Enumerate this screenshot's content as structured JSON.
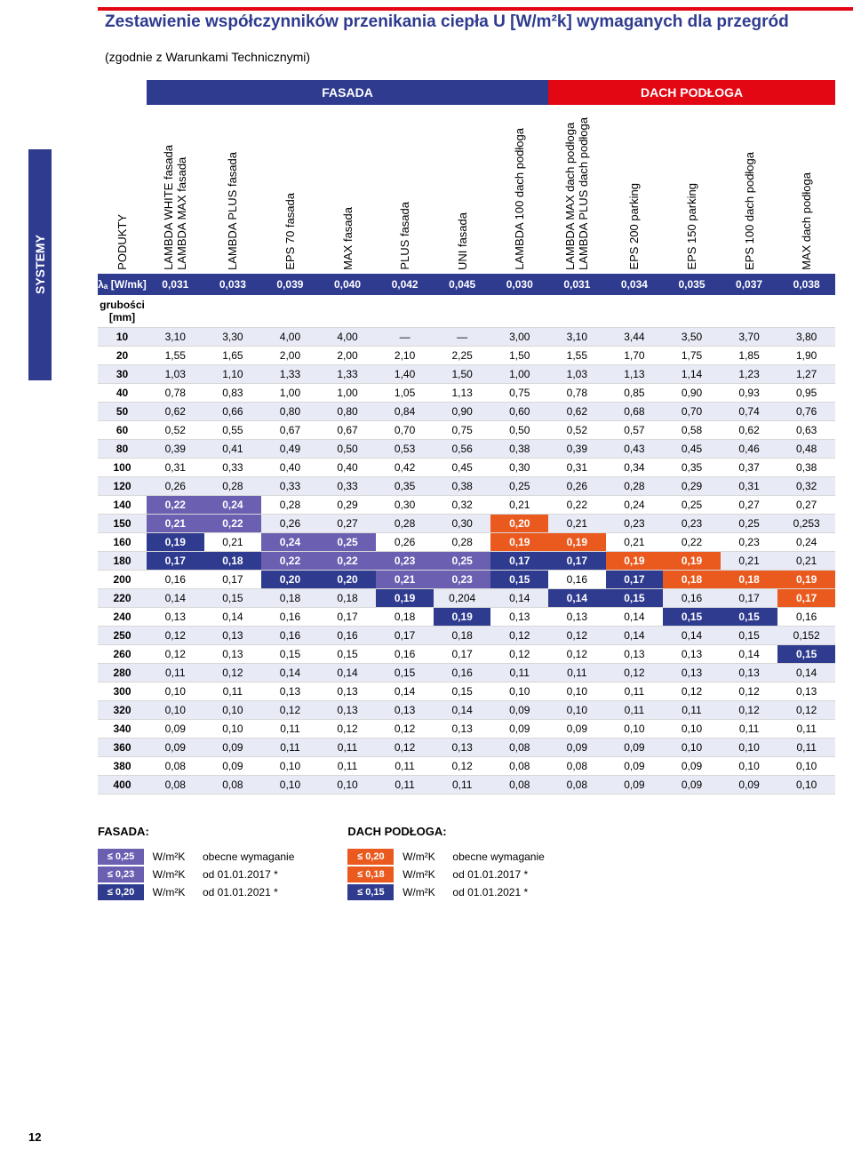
{
  "page_number": "12",
  "rail": {
    "label": "SYSTEMY",
    "bg": "#2e3b8f",
    "fg": "#ffffff"
  },
  "header": {
    "border_color": "#e30613",
    "title_color": "#2e3b8f"
  },
  "title": "Zestawienie współczynników przenikania ciepła U [W/m²k] wymaganych dla przegród",
  "subtitle": "(zgodnie z Warunkami Technicznymi)",
  "bands": [
    {
      "label": "FASADA",
      "bg": "#2e3b8f",
      "span": 7
    },
    {
      "label": "DACH PODŁOGA",
      "bg": "#e30613",
      "span": 5
    }
  ],
  "first_col_header": "PODUKTY",
  "columns": [
    "LAMBDA WHITE fasada\nLAMBDA MAX fasada",
    "LAMBDA PLUS fasada",
    "EPS 70 fasada",
    "MAX fasada",
    "PLUS fasada",
    "UNI fasada",
    "LAMBDA 100 dach podłoga",
    "LAMBDA MAX dach podłoga\nLAMBDA PLUS dach podłoga",
    "EPS 200 parking",
    "EPS 150 parking",
    "EPS 100 dach podłoga",
    "MAX dach podłoga"
  ],
  "lambda_row": {
    "label": "λₐ [W/mk]",
    "values": [
      "0,031",
      "0,033",
      "0,039",
      "0,040",
      "0,042",
      "0,045",
      "0,030",
      "0,031",
      "0,034",
      "0,035",
      "0,037",
      "0,038"
    ],
    "bg": "#2e3b8f"
  },
  "grubosci_label": "grubości\n[mm]",
  "row_colors": {
    "even": "#e8eaf5",
    "odd": "#ffffff"
  },
  "highlight_colors": {
    "purple": "#6b5fb2",
    "orange": "#ea5a1f",
    "navy": "#2e3b8f"
  },
  "rows": [
    {
      "t": "10",
      "v": [
        "3,10",
        "3,30",
        "4,00",
        "4,00",
        "—",
        "—",
        "3,00",
        "3,10",
        "3,44",
        "3,50",
        "3,70",
        "3,80"
      ],
      "hl": []
    },
    {
      "t": "20",
      "v": [
        "1,55",
        "1,65",
        "2,00",
        "2,00",
        "2,10",
        "2,25",
        "1,50",
        "1,55",
        "1,70",
        "1,75",
        "1,85",
        "1,90"
      ],
      "hl": []
    },
    {
      "t": "30",
      "v": [
        "1,03",
        "1,10",
        "1,33",
        "1,33",
        "1,40",
        "1,50",
        "1,00",
        "1,03",
        "1,13",
        "1,14",
        "1,23",
        "1,27"
      ],
      "hl": []
    },
    {
      "t": "40",
      "v": [
        "0,78",
        "0,83",
        "1,00",
        "1,00",
        "1,05",
        "1,13",
        "0,75",
        "0,78",
        "0,85",
        "0,90",
        "0,93",
        "0,95"
      ],
      "hl": []
    },
    {
      "t": "50",
      "v": [
        "0,62",
        "0,66",
        "0,80",
        "0,80",
        "0,84",
        "0,90",
        "0,60",
        "0,62",
        "0,68",
        "0,70",
        "0,74",
        "0,76"
      ],
      "hl": []
    },
    {
      "t": "60",
      "v": [
        "0,52",
        "0,55",
        "0,67",
        "0,67",
        "0,70",
        "0,75",
        "0,50",
        "0,52",
        "0,57",
        "0,58",
        "0,62",
        "0,63"
      ],
      "hl": []
    },
    {
      "t": "80",
      "v": [
        "0,39",
        "0,41",
        "0,49",
        "0,50",
        "0,53",
        "0,56",
        "0,38",
        "0,39",
        "0,43",
        "0,45",
        "0,46",
        "0,48"
      ],
      "hl": []
    },
    {
      "t": "100",
      "v": [
        "0,31",
        "0,33",
        "0,40",
        "0,40",
        "0,42",
        "0,45",
        "0,30",
        "0,31",
        "0,34",
        "0,35",
        "0,37",
        "0,38"
      ],
      "hl": []
    },
    {
      "t": "120",
      "v": [
        "0,26",
        "0,28",
        "0,33",
        "0,33",
        "0,35",
        "0,38",
        "0,25",
        "0,26",
        "0,28",
        "0,29",
        "0,31",
        "0,32"
      ],
      "hl": []
    },
    {
      "t": "140",
      "v": [
        "0,22",
        "0,24",
        "0,28",
        "0,29",
        "0,30",
        "0,32",
        "0,21",
        "0,22",
        "0,24",
        "0,25",
        "0,27",
        "0,27"
      ],
      "hl": [
        [
          0,
          "purple"
        ],
        [
          1,
          "purple"
        ]
      ]
    },
    {
      "t": "150",
      "v": [
        "0,21",
        "0,22",
        "0,26",
        "0,27",
        "0,28",
        "0,30",
        "0,20",
        "0,21",
        "0,23",
        "0,23",
        "0,25",
        "0,253"
      ],
      "hl": [
        [
          0,
          "purple"
        ],
        [
          1,
          "purple"
        ],
        [
          6,
          "orange"
        ]
      ]
    },
    {
      "t": "160",
      "v": [
        "0,19",
        "0,21",
        "0,24",
        "0,25",
        "0,26",
        "0,28",
        "0,19",
        "0,19",
        "0,21",
        "0,22",
        "0,23",
        "0,24"
      ],
      "hl": [
        [
          0,
          "navy"
        ],
        [
          2,
          "purple"
        ],
        [
          3,
          "purple"
        ],
        [
          6,
          "orange"
        ],
        [
          7,
          "orange"
        ]
      ]
    },
    {
      "t": "180",
      "v": [
        "0,17",
        "0,18",
        "0,22",
        "0,22",
        "0,23",
        "0,25",
        "0,17",
        "0,17",
        "0,19",
        "0,19",
        "0,21",
        "0,21"
      ],
      "hl": [
        [
          0,
          "navy"
        ],
        [
          1,
          "navy"
        ],
        [
          2,
          "purple"
        ],
        [
          3,
          "purple"
        ],
        [
          4,
          "purple"
        ],
        [
          5,
          "purple"
        ],
        [
          6,
          "navy"
        ],
        [
          7,
          "navy"
        ],
        [
          8,
          "orange"
        ],
        [
          9,
          "orange"
        ]
      ]
    },
    {
      "t": "200",
      "v": [
        "0,16",
        "0,17",
        "0,20",
        "0,20",
        "0,21",
        "0,23",
        "0,15",
        "0,16",
        "0,17",
        "0,18",
        "0,18",
        "0,19"
      ],
      "hl": [
        [
          2,
          "navy"
        ],
        [
          3,
          "navy"
        ],
        [
          4,
          "purple"
        ],
        [
          5,
          "purple"
        ],
        [
          6,
          "navy"
        ],
        [
          8,
          "navy"
        ],
        [
          9,
          "orange"
        ],
        [
          10,
          "orange"
        ],
        [
          11,
          "orange"
        ]
      ]
    },
    {
      "t": "220",
      "v": [
        "0,14",
        "0,15",
        "0,18",
        "0,18",
        "0,19",
        "0,204",
        "0,14",
        "0,14",
        "0,15",
        "0,16",
        "0,17",
        "0,17"
      ],
      "hl": [
        [
          4,
          "navy"
        ],
        [
          7,
          "navy"
        ],
        [
          8,
          "navy"
        ],
        [
          11,
          "orange"
        ]
      ]
    },
    {
      "t": "240",
      "v": [
        "0,13",
        "0,14",
        "0,16",
        "0,17",
        "0,18",
        "0,19",
        "0,13",
        "0,13",
        "0,14",
        "0,15",
        "0,15",
        "0,16"
      ],
      "hl": [
        [
          5,
          "navy"
        ],
        [
          9,
          "navy"
        ],
        [
          10,
          "navy"
        ]
      ]
    },
    {
      "t": "250",
      "v": [
        "0,12",
        "0,13",
        "0,16",
        "0,16",
        "0,17",
        "0,18",
        "0,12",
        "0,12",
        "0,14",
        "0,14",
        "0,15",
        "0,152"
      ],
      "hl": []
    },
    {
      "t": "260",
      "v": [
        "0,12",
        "0,13",
        "0,15",
        "0,15",
        "0,16",
        "0,17",
        "0,12",
        "0,12",
        "0,13",
        "0,13",
        "0,14",
        "0,15"
      ],
      "hl": [
        [
          11,
          "navy"
        ]
      ]
    },
    {
      "t": "280",
      "v": [
        "0,11",
        "0,12",
        "0,14",
        "0,14",
        "0,15",
        "0,16",
        "0,11",
        "0,11",
        "0,12",
        "0,13",
        "0,13",
        "0,14"
      ],
      "hl": []
    },
    {
      "t": "300",
      "v": [
        "0,10",
        "0,11",
        "0,13",
        "0,13",
        "0,14",
        "0,15",
        "0,10",
        "0,10",
        "0,11",
        "0,12",
        "0,12",
        "0,13"
      ],
      "hl": []
    },
    {
      "t": "320",
      "v": [
        "0,10",
        "0,10",
        "0,12",
        "0,13",
        "0,13",
        "0,14",
        "0,09",
        "0,10",
        "0,11",
        "0,11",
        "0,12",
        "0,12"
      ],
      "hl": []
    },
    {
      "t": "340",
      "v": [
        "0,09",
        "0,10",
        "0,11",
        "0,12",
        "0,12",
        "0,13",
        "0,09",
        "0,09",
        "0,10",
        "0,10",
        "0,11",
        "0,11"
      ],
      "hl": []
    },
    {
      "t": "360",
      "v": [
        "0,09",
        "0,09",
        "0,11",
        "0,11",
        "0,12",
        "0,13",
        "0,08",
        "0,09",
        "0,09",
        "0,10",
        "0,10",
        "0,11"
      ],
      "hl": []
    },
    {
      "t": "380",
      "v": [
        "0,08",
        "0,09",
        "0,10",
        "0,11",
        "0,11",
        "0,12",
        "0,08",
        "0,08",
        "0,09",
        "0,09",
        "0,10",
        "0,10"
      ],
      "hl": []
    },
    {
      "t": "400",
      "v": [
        "0,08",
        "0,08",
        "0,10",
        "0,10",
        "0,11",
        "0,11",
        "0,08",
        "0,08",
        "0,09",
        "0,09",
        "0,09",
        "0,10"
      ],
      "hl": []
    }
  ],
  "legends": [
    {
      "title": "FASADA:",
      "rows": [
        {
          "swatch": "≤ 0,25",
          "color": "purple",
          "unit": "W/m²K",
          "text": "obecne wymaganie"
        },
        {
          "swatch": "≤ 0,23",
          "color": "purple",
          "unit": "W/m²K",
          "text": "od 01.01.2017 *"
        },
        {
          "swatch": "≤ 0,20",
          "color": "navy",
          "unit": "W/m²K",
          "text": "od 01.01.2021 *"
        }
      ]
    },
    {
      "title": "DACH PODŁOGA:",
      "rows": [
        {
          "swatch": "≤ 0,20",
          "color": "orange",
          "unit": "W/m²K",
          "text": "obecne wymaganie"
        },
        {
          "swatch": "≤ 0,18",
          "color": "orange",
          "unit": "W/m²K",
          "text": "od 01.01.2017 *"
        },
        {
          "swatch": "≤ 0,15",
          "color": "navy",
          "unit": "W/m²K",
          "text": "od 01.01.2021 *"
        }
      ]
    }
  ]
}
